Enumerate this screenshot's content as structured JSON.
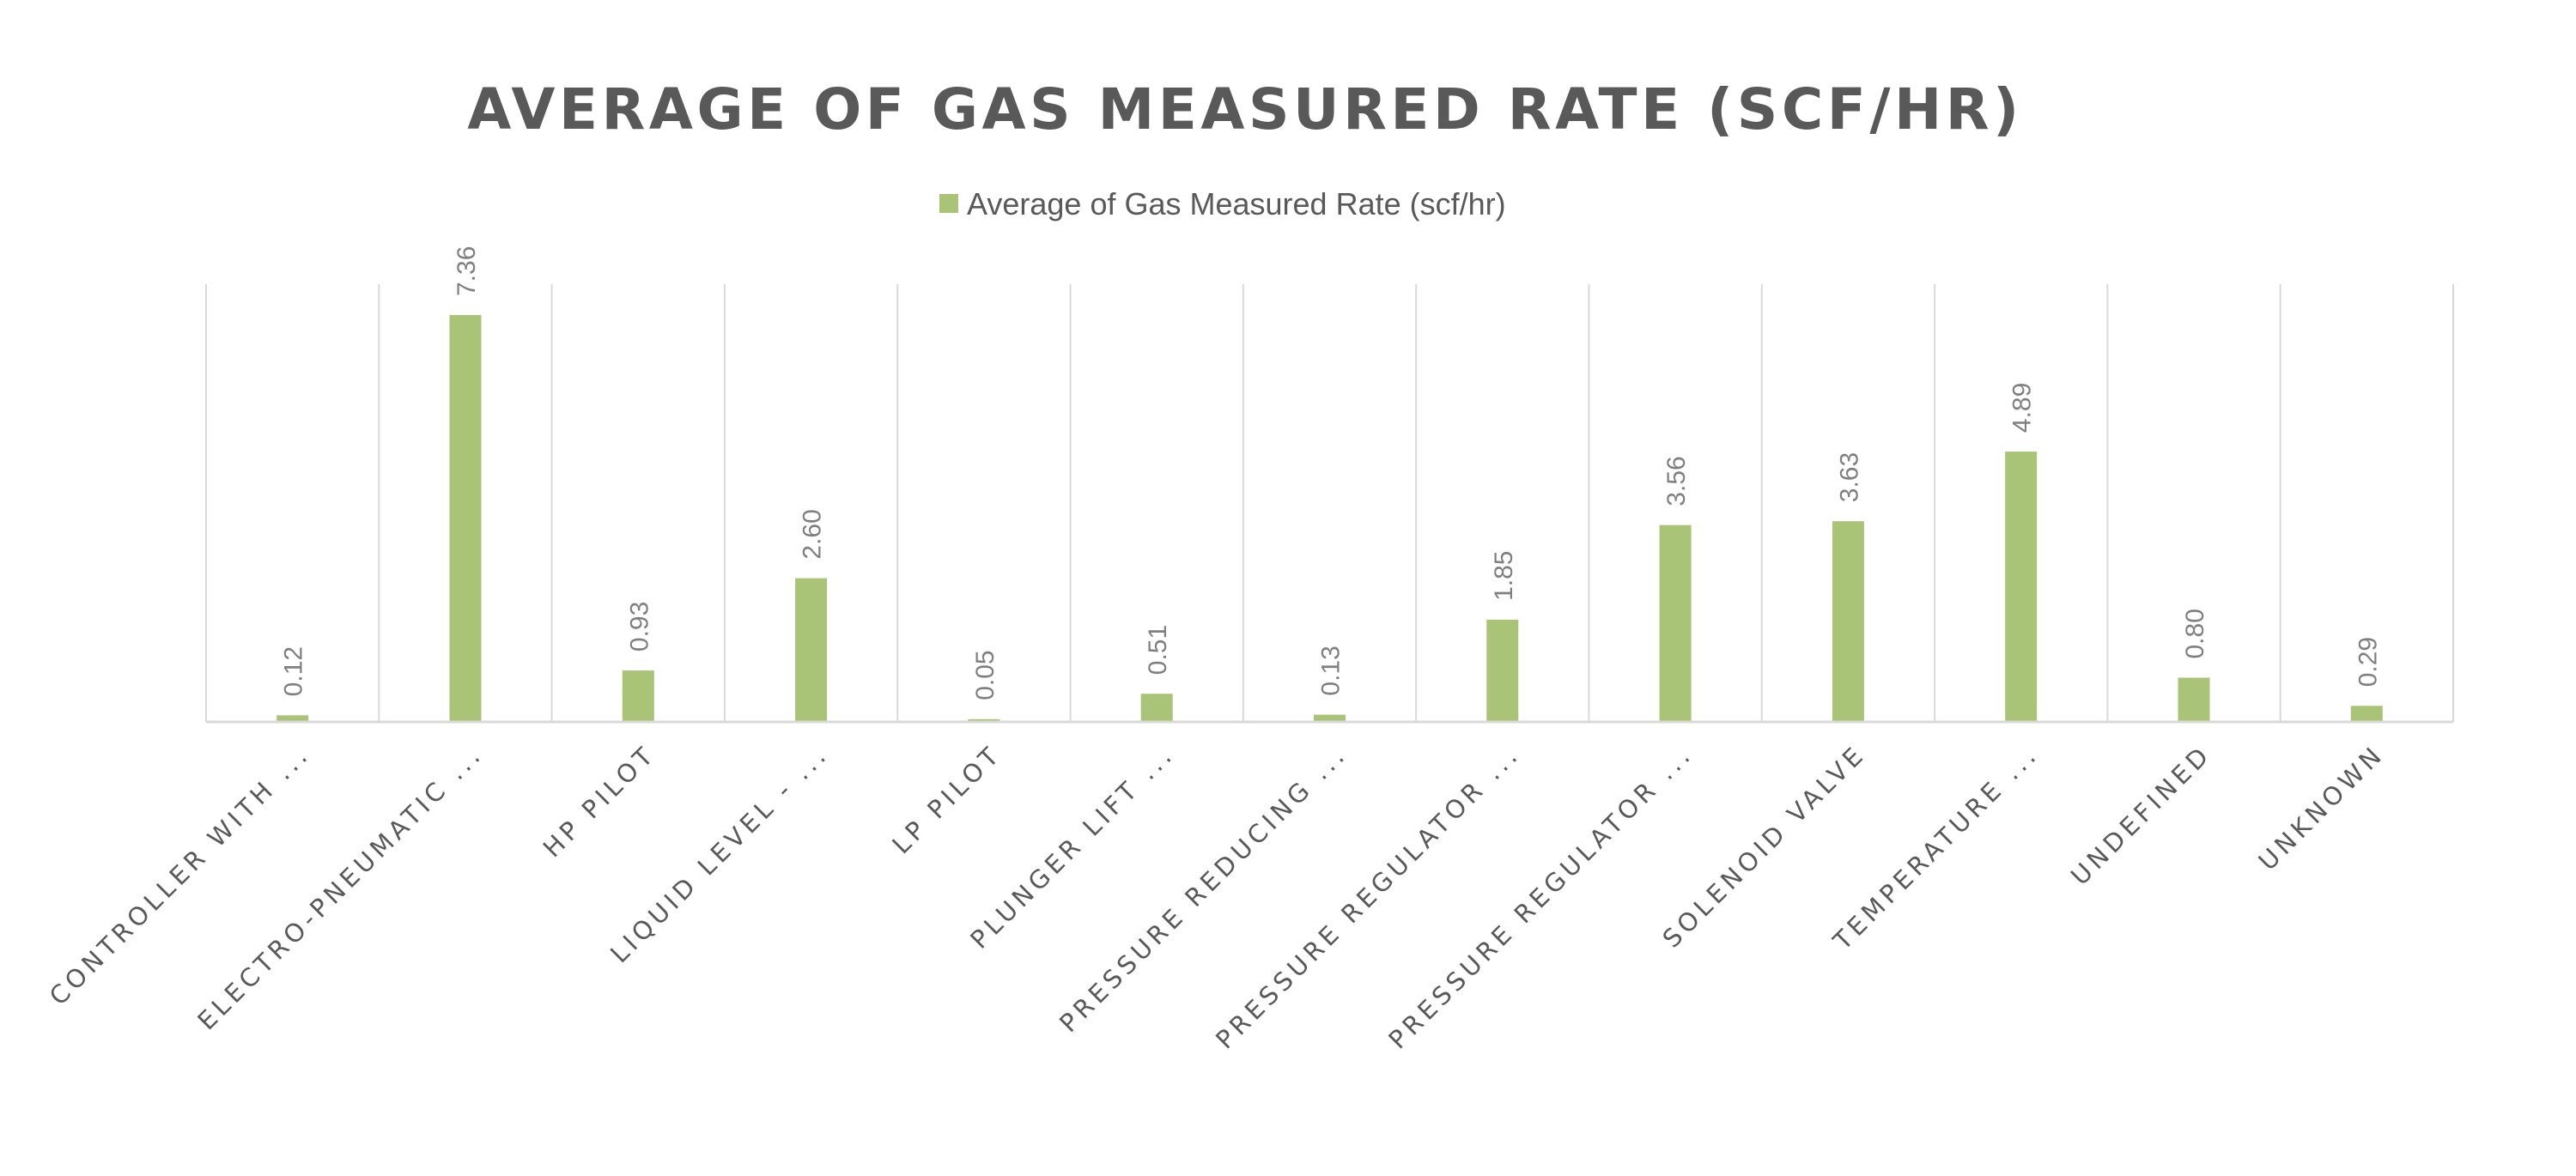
{
  "chart_data": {
    "type": "bar",
    "title": "AVERAGE OF GAS MEASURED RATE (SCF/HR)",
    "legend": {
      "position": "top",
      "entries": [
        "Average of Gas Measured Rate (scf/hr)"
      ]
    },
    "categories": [
      "CONTROLLER WITH ...",
      "ELECTRO-PNEUMATIC ...",
      "HP PILOT",
      "LIQUID LEVEL - ...",
      "LP PILOT",
      "PLUNGER LIFT ...",
      "PRESSURE REDUCING ...",
      "PRESSURE REGULATOR ...",
      "PRESSURE REGULATOR ...",
      "SOLENOID VALVE",
      "TEMPERATURE ...",
      "UNDEFINED",
      "UNKNOWN"
    ],
    "series": [
      {
        "name": "Average of Gas Measured Rate (scf/hr)",
        "values": [
          0.12,
          7.36,
          0.93,
          2.6,
          0.05,
          0.51,
          0.13,
          1.85,
          3.56,
          3.63,
          4.89,
          0.8,
          0.29
        ],
        "labels": [
          "0.12",
          "7.36",
          "0.93",
          "2.60",
          "0.05",
          "0.51",
          "0.13",
          "1.85",
          "3.56",
          "3.63",
          "4.89",
          "0.80",
          "0.29"
        ]
      }
    ],
    "ylim": [
      0,
      8
    ],
    "grid": "vertical category separators",
    "colors": {
      "bar": "#a9c476",
      "grid": "#d9d9d9",
      "title": "#595959",
      "label": "#7f7f7f"
    }
  }
}
